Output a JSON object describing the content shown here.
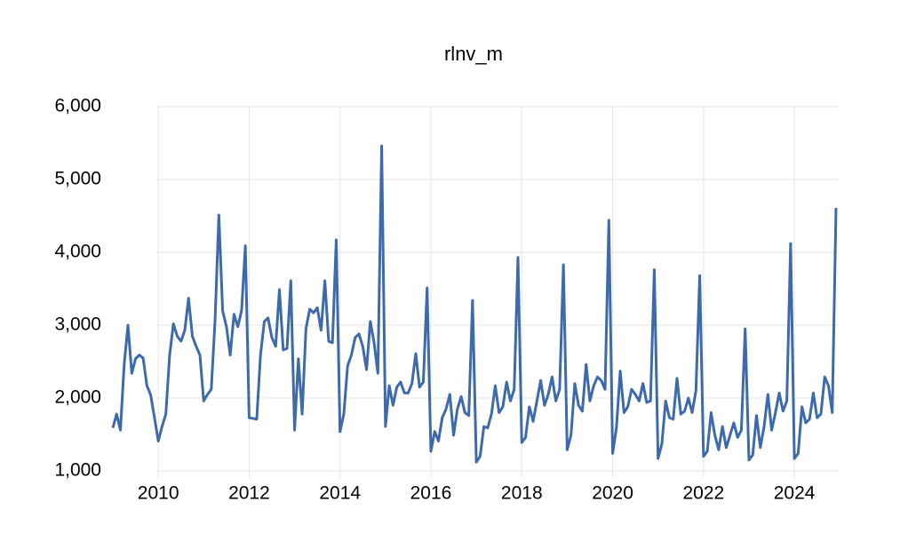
{
  "chart_data": {
    "type": "line",
    "title": "rlnv_m",
    "categories": [
      null,
      null,
      null,
      null,
      null,
      null,
      null,
      null,
      null,
      null,
      null,
      null,
      "2010",
      null,
      null,
      null,
      null,
      null,
      null,
      null,
      null,
      null,
      null,
      null,
      null,
      null,
      null,
      null,
      null,
      null,
      null,
      null,
      null,
      null,
      null,
      null,
      "2012",
      null,
      null,
      null,
      null,
      null,
      null,
      null,
      null,
      null,
      null,
      null,
      null,
      null,
      null,
      null,
      null,
      null,
      null,
      null,
      null,
      null,
      null,
      null,
      "2014",
      null,
      null,
      null,
      null,
      null,
      null,
      null,
      null,
      null,
      null,
      null,
      null,
      null,
      null,
      null,
      null,
      null,
      null,
      null,
      null,
      null,
      null,
      null,
      "2016",
      null,
      null,
      null,
      null,
      null,
      null,
      null,
      null,
      null,
      null,
      null,
      null,
      null,
      null,
      null,
      null,
      null,
      null,
      null,
      null,
      null,
      null,
      null,
      "2018",
      null,
      null,
      null,
      null,
      null,
      null,
      null,
      null,
      null,
      null,
      null,
      null,
      null,
      null,
      null,
      null,
      null,
      null,
      null,
      null,
      null,
      null,
      null,
      "2020",
      null,
      null,
      null,
      null,
      null,
      null,
      null,
      null,
      null,
      null,
      null,
      null,
      null,
      null,
      null,
      null,
      null,
      null,
      null,
      null,
      null,
      null,
      null,
      "2022",
      null,
      null,
      null,
      null,
      null,
      null,
      null,
      null,
      null,
      null,
      null,
      null,
      null,
      null,
      null,
      null,
      null,
      null,
      null,
      null,
      null,
      null,
      null,
      "2024",
      null,
      null,
      null,
      null,
      null,
      null,
      null,
      null,
      null,
      null,
      null
    ],
    "series": [
      {
        "color": "#3d6aad",
        "values": [
          1590,
          1780,
          1560,
          2460,
          3000,
          2340,
          2540,
          2590,
          2550,
          2170,
          2040,
          1730,
          1410,
          1610,
          1780,
          2590,
          3020,
          2850,
          2780,
          2930,
          3370,
          2850,
          2710,
          2590,
          1960,
          2050,
          2120,
          3070,
          4510,
          3200,
          2980,
          2590,
          3150,
          2980,
          3200,
          4090,
          1730,
          1720,
          1710,
          2590,
          3050,
          3100,
          2830,
          2710,
          3490,
          2660,
          2680,
          3610,
          1560,
          2540,
          1780,
          2950,
          3220,
          3170,
          3240,
          2930,
          3610,
          2780,
          2760,
          4170,
          1540,
          1780,
          2440,
          2590,
          2830,
          2880,
          2710,
          2390,
          3050,
          2760,
          2340,
          5460,
          1610,
          2170,
          1900,
          2150,
          2220,
          2070,
          2070,
          2200,
          2610,
          2150,
          2220,
          3510,
          1270,
          1540,
          1410,
          1730,
          1850,
          2050,
          1490,
          1850,
          2020,
          1800,
          1760,
          3340,
          1120,
          1200,
          1610,
          1590,
          1780,
          2170,
          1800,
          1880,
          2220,
          1960,
          2120,
          3930,
          1390,
          1460,
          1880,
          1680,
          1960,
          2240,
          1900,
          2050,
          2290,
          1960,
          2120,
          3830,
          1290,
          1490,
          2200,
          1900,
          1820,
          2460,
          1960,
          2170,
          2290,
          2240,
          2120,
          4440,
          1240,
          1590,
          2370,
          1800,
          1880,
          2120,
          2050,
          1960,
          2200,
          1940,
          1960,
          3760,
          1170,
          1370,
          1960,
          1730,
          1710,
          2270,
          1780,
          1820,
          2000,
          1800,
          2100,
          3680,
          1200,
          1270,
          1800,
          1490,
          1290,
          1610,
          1320,
          1490,
          1660,
          1460,
          1560,
          2950,
          1150,
          1220,
          1760,
          1320,
          1610,
          2050,
          1560,
          1800,
          2070,
          1820,
          1960,
          4120,
          1170,
          1240,
          1880,
          1660,
          1710,
          2070,
          1730,
          1780,
          2290,
          2170,
          1800,
          4610
        ]
      }
    ],
    "ylim": [
      1000,
      6000
    ],
    "yticks": [
      {
        "value": 1000,
        "label": "1,000"
      },
      {
        "value": 2000,
        "label": "2,000"
      },
      {
        "value": 3000,
        "label": "3,000"
      },
      {
        "value": 4000,
        "label": "4,000"
      },
      {
        "value": 5000,
        "label": "5,000"
      },
      {
        "value": 6000,
        "label": "6,000"
      }
    ],
    "grid": true
  }
}
